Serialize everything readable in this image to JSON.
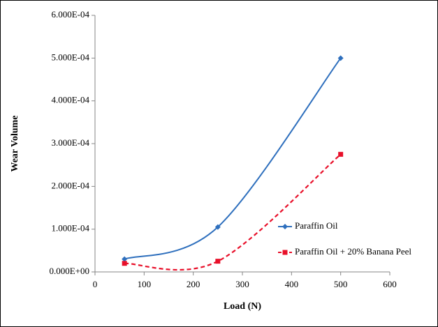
{
  "chart_data": {
    "type": "scatter",
    "x_label": "Load (N)",
    "y_label": "Wear Volume",
    "series": [
      {
        "name": "Paraffin Oil",
        "color": "#2e6fbd",
        "marker": "diamond",
        "line": "solid",
        "x": [
          60,
          250,
          500
        ],
        "values": [
          3e-05,
          0.000105,
          0.0005
        ]
      },
      {
        "name": "Paraffin Oil + 20% Banana Peel",
        "color": "#e8102a",
        "marker": "square",
        "line": "dashed",
        "x": [
          60,
          250,
          500
        ],
        "values": [
          2e-05,
          2.5e-05,
          0.000275
        ]
      }
    ],
    "xlim": [
      0,
      600
    ],
    "xticks": [
      0,
      100,
      200,
      300,
      400,
      500,
      600
    ],
    "ylim": [
      0,
      0.0006
    ],
    "yticks": [
      {
        "value": 0,
        "label": "0.000E+00"
      },
      {
        "value": 0.0001,
        "label": "1.000E-04"
      },
      {
        "value": 0.0002,
        "label": "2.000E-04"
      },
      {
        "value": 0.0003,
        "label": "3.000E-04"
      },
      {
        "value": 0.0004,
        "label": "4.000E-04"
      },
      {
        "value": 0.0005,
        "label": "5.000E-04"
      },
      {
        "value": 0.0006,
        "label": "6.000E-04"
      }
    ],
    "smooth": true,
    "grid": false,
    "legend": "right"
  }
}
